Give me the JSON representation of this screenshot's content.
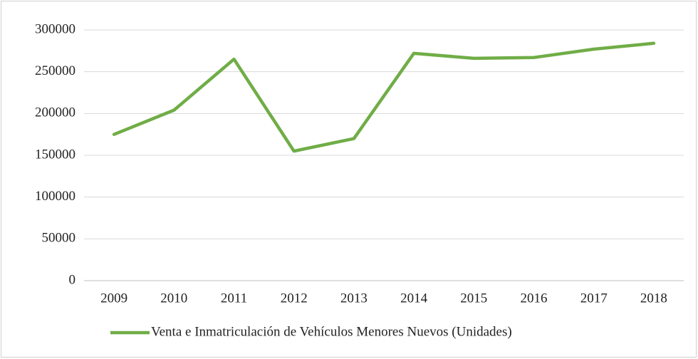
{
  "chart_data": {
    "type": "line",
    "categories": [
      "2009",
      "2010",
      "2011",
      "2012",
      "2013",
      "2014",
      "2015",
      "2016",
      "2017",
      "2018"
    ],
    "series": [
      {
        "name": "Venta e Inmatriculación de Vehículos Menores Nuevos (Unidades)",
        "color": "#70ad47",
        "values": [
          175000,
          204000,
          265000,
          155000,
          170000,
          272000,
          266000,
          267000,
          277000,
          284000
        ]
      }
    ],
    "ylim": [
      0,
      300000
    ],
    "yticks": [
      0,
      50000,
      100000,
      150000,
      200000,
      250000,
      300000
    ],
    "grid": true,
    "legend": "bottom"
  }
}
